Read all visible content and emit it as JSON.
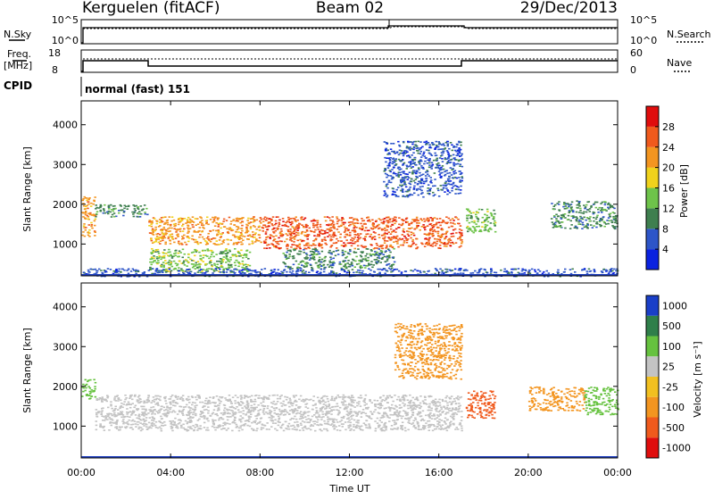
{
  "header": {
    "station": "Kerguelen (fitACF)",
    "beam": "Beam 02",
    "date": "29/Dec/2013"
  },
  "noise_panel": {
    "left_label": "N.Sky",
    "right_label": "N.Search",
    "left_ticks": [
      "10^5",
      "10^0"
    ],
    "right_ticks": [
      "10^5",
      "10^0"
    ]
  },
  "freq_panel": {
    "left_label_1": "Freq.",
    "left_label_2": "[MHz]",
    "right_label": "Nave",
    "left_ticks": [
      "18",
      "8"
    ],
    "right_ticks": [
      "60",
      "0"
    ]
  },
  "cpid_panel": {
    "label": "CPID",
    "value": "normal (fast) 151"
  },
  "chart_data": [
    {
      "type": "heatmap",
      "name": "Power",
      "ylabel": "Slant Range [km]",
      "ylim": [
        200,
        4600
      ],
      "yticks": [
        "1000",
        "2000",
        "3000",
        "4000"
      ],
      "ytick_values": [
        1000,
        2000,
        3000,
        4000
      ],
      "xlim": [
        0,
        24
      ],
      "colorbar": {
        "label": "Power [dB]",
        "range": [
          0,
          32
        ],
        "tick_labels": [
          "4",
          "8",
          "12",
          "16",
          "20",
          "24",
          "28"
        ],
        "tick_values": [
          4,
          8,
          12,
          16,
          20,
          24,
          28
        ],
        "colors": [
          "#0a22e0",
          "#2d55c8",
          "#3f7f4f",
          "#6ec34a",
          "#f0d21c",
          "#f39520",
          "#f05a1d",
          "#e00d0d"
        ]
      },
      "echo_regions": [
        {
          "t": [
            0.0,
            0.6
          ],
          "r": [
            1200,
            2200
          ],
          "level": 20
        },
        {
          "t": [
            0.6,
            3.0
          ],
          "r": [
            1700,
            2000
          ],
          "level": 8
        },
        {
          "t": [
            3.0,
            8.0
          ],
          "r": [
            1000,
            1700
          ],
          "level": 22
        },
        {
          "t": [
            3.0,
            7.5
          ],
          "r": [
            300,
            900
          ],
          "level": 14
        },
        {
          "t": [
            8.0,
            17.0
          ],
          "r": [
            900,
            1700
          ],
          "level": 24
        },
        {
          "t": [
            9.0,
            14.0
          ],
          "r": [
            400,
            900
          ],
          "level": 10
        },
        {
          "t": [
            13.5,
            17.0
          ],
          "r": [
            2200,
            3600
          ],
          "level": 6
        },
        {
          "t": [
            17.2,
            18.5
          ],
          "r": [
            1300,
            1900
          ],
          "level": 12
        },
        {
          "t": [
            21.0,
            24.0
          ],
          "r": [
            1400,
            2100
          ],
          "level": 8
        },
        {
          "t": [
            0.0,
            24.0
          ],
          "r": [
            200,
            400
          ],
          "level": 6
        }
      ]
    },
    {
      "type": "heatmap",
      "name": "Velocity",
      "ylabel": "Slant Range [km]",
      "ylim": [
        200,
        4600
      ],
      "yticks": [
        "1000",
        "2000",
        "3000",
        "4000"
      ],
      "ytick_values": [
        1000,
        2000,
        3000,
        4000
      ],
      "xlim": [
        0,
        24
      ],
      "colorbar": {
        "label": "Velocity [m s⁻¹]",
        "tick_labels": [
          "1000",
          "500",
          "100",
          "25",
          "-25",
          "-100",
          "-500",
          "-1000"
        ],
        "colors": [
          "#1a3fc8",
          "#2f7f4a",
          "#66c23f",
          "#c3c3c3",
          "#f2c020",
          "#f39520",
          "#f05a1d",
          "#e00d0d"
        ]
      },
      "echo_regions": [
        {
          "t": [
            0.0,
            0.6
          ],
          "r": [
            1700,
            2200
          ],
          "level": "100"
        },
        {
          "t": [
            0.6,
            17.0
          ],
          "r": [
            900,
            1800
          ],
          "level": "ground"
        },
        {
          "t": [
            14.0,
            17.0
          ],
          "r": [
            2200,
            3600
          ],
          "level": "-100"
        },
        {
          "t": [
            17.2,
            18.5
          ],
          "r": [
            1200,
            1900
          ],
          "level": "-500"
        },
        {
          "t": [
            20.0,
            22.5
          ],
          "r": [
            1400,
            2000
          ],
          "level": "-100"
        },
        {
          "t": [
            22.5,
            24.0
          ],
          "r": [
            1300,
            2000
          ],
          "level": "100"
        }
      ]
    }
  ],
  "x_axis": {
    "label": "Time UT",
    "tick_labels": [
      "00:00",
      "04:00",
      "08:00",
      "12:00",
      "16:00",
      "20:00",
      "00:00"
    ],
    "tick_values": [
      0,
      4,
      8,
      12,
      16,
      20,
      24
    ]
  }
}
